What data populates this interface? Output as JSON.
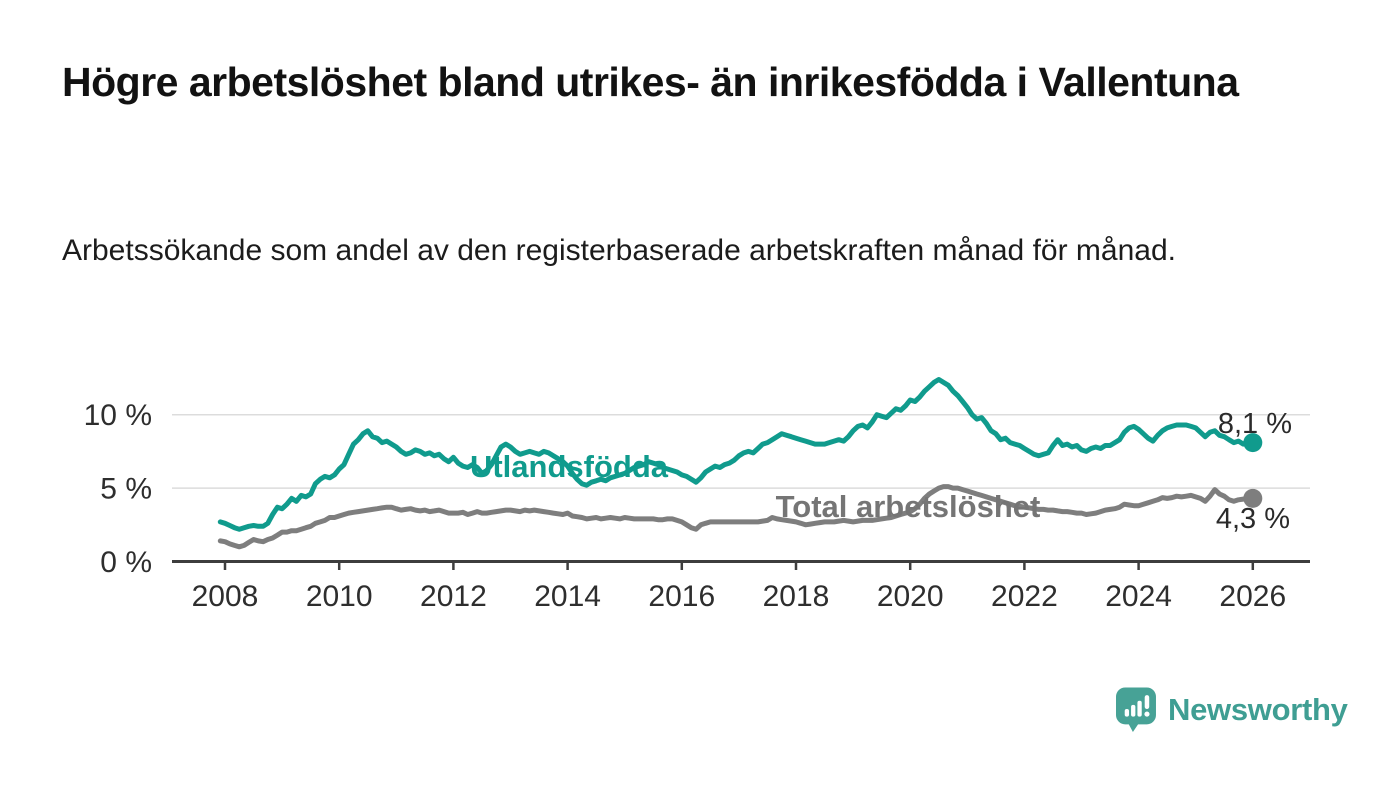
{
  "header": {
    "title": "Högre arbetslöshet bland utrikes- än inrikesfödda i Vallentuna",
    "subtitle": "Arbetssökande som andel av den registerbaserade arbetskraften månad för månad."
  },
  "chart_data": {
    "type": "line",
    "title": "Högre arbetslöshet bland utrikes- än inrikesfödda i Vallentuna",
    "subtitle": "Arbetssökande som andel av den registerbaserade arbetskraften månad för månad.",
    "unit": "%",
    "x_start": 2007.917,
    "x_step_months": 1,
    "x_end": 2026.0,
    "xlim": [
      2007.1,
      2027.0
    ],
    "ylim": [
      0,
      13.1
    ],
    "grid": "horizontal-only",
    "legend_position": "inline-labels",
    "yticks": [
      {
        "value": 0,
        "label": "0 %"
      },
      {
        "value": 5,
        "label": "5 %"
      },
      {
        "value": 10,
        "label": "10 %"
      }
    ],
    "gridlines": [
      5,
      10
    ],
    "xticks": [
      {
        "value": 2008,
        "label": "2008"
      },
      {
        "value": 2010,
        "label": "2010"
      },
      {
        "value": 2012,
        "label": "2012"
      },
      {
        "value": 2014,
        "label": "2014"
      },
      {
        "value": 2016,
        "label": "2016"
      },
      {
        "value": 2018,
        "label": "2018"
      },
      {
        "value": 2020,
        "label": "2020"
      },
      {
        "value": 2022,
        "label": "2022"
      },
      {
        "value": 2024,
        "label": "2024"
      },
      {
        "value": 2026,
        "label": "2026"
      }
    ],
    "series": [
      {
        "name": "Utlandsfödda",
        "color": "#109b8d",
        "end_label": "8,1 %",
        "end_value": 8.1,
        "values": [
          2.7,
          2.6,
          2.45,
          2.3,
          2.2,
          2.3,
          2.4,
          2.45,
          2.4,
          2.4,
          2.6,
          3.2,
          3.7,
          3.6,
          3.9,
          4.3,
          4.1,
          4.5,
          4.4,
          4.6,
          5.3,
          5.6,
          5.8,
          5.7,
          5.9,
          6.3,
          6.6,
          7.3,
          8.0,
          8.3,
          8.7,
          8.9,
          8.5,
          8.4,
          8.1,
          8.2,
          8.0,
          7.8,
          7.5,
          7.3,
          7.4,
          7.6,
          7.5,
          7.3,
          7.4,
          7.2,
          7.3,
          7.0,
          6.8,
          7.1,
          6.7,
          6.5,
          6.4,
          6.6,
          6.4,
          6.0,
          6.2,
          6.6,
          7.2,
          7.8,
          8.0,
          7.8,
          7.5,
          7.3,
          7.4,
          7.5,
          7.4,
          7.3,
          7.5,
          7.4,
          7.2,
          7.0,
          6.8,
          6.5,
          6.0,
          5.6,
          5.3,
          5.2,
          5.4,
          5.5,
          5.6,
          5.5,
          5.7,
          5.8,
          5.9,
          6.0,
          6.2,
          6.4,
          6.5,
          6.6,
          6.8,
          6.7,
          6.6,
          6.4,
          6.3,
          6.2,
          6.1,
          5.9,
          5.8,
          5.6,
          5.4,
          5.7,
          6.1,
          6.3,
          6.5,
          6.4,
          6.6,
          6.7,
          6.9,
          7.2,
          7.4,
          7.5,
          7.4,
          7.7,
          8.0,
          8.1,
          8.3,
          8.5,
          8.7,
          8.6,
          8.5,
          8.4,
          8.3,
          8.2,
          8.1,
          8.0,
          8.0,
          8.0,
          8.1,
          8.2,
          8.3,
          8.2,
          8.5,
          8.9,
          9.2,
          9.3,
          9.1,
          9.5,
          10.0,
          9.9,
          9.8,
          10.1,
          10.4,
          10.3,
          10.6,
          11.0,
          10.9,
          11.2,
          11.6,
          11.9,
          12.2,
          12.4,
          12.2,
          12.0,
          11.6,
          11.3,
          10.9,
          10.5,
          10.0,
          9.7,
          9.8,
          9.4,
          8.9,
          8.7,
          8.3,
          8.4,
          8.1,
          8.0,
          7.9,
          7.7,
          7.5,
          7.3,
          7.2,
          7.3,
          7.4,
          7.9,
          8.3,
          7.9,
          8.0,
          7.8,
          7.9,
          7.6,
          7.5,
          7.7,
          7.8,
          7.7,
          7.9,
          7.9,
          8.1,
          8.3,
          8.8,
          9.1,
          9.2,
          9.0,
          8.7,
          8.4,
          8.2,
          8.6,
          8.9,
          9.1,
          9.2,
          9.3,
          9.3,
          9.3,
          9.2,
          9.1,
          8.8,
          8.5,
          8.8,
          8.9,
          8.6,
          8.5,
          8.3,
          8.1,
          8.2,
          8.0,
          8.1,
          8.1
        ]
      },
      {
        "name": "Total arbetslöshet",
        "color": "#7e7e7e",
        "end_label": "4,3 %",
        "end_value": 4.3,
        "values": [
          1.4,
          1.35,
          1.2,
          1.1,
          1.0,
          1.1,
          1.3,
          1.5,
          1.4,
          1.35,
          1.5,
          1.6,
          1.8,
          2.0,
          2.0,
          2.1,
          2.1,
          2.2,
          2.3,
          2.4,
          2.6,
          2.7,
          2.8,
          3.0,
          3.0,
          3.1,
          3.2,
          3.3,
          3.35,
          3.4,
          3.45,
          3.5,
          3.55,
          3.6,
          3.65,
          3.7,
          3.7,
          3.6,
          3.5,
          3.55,
          3.6,
          3.5,
          3.45,
          3.5,
          3.4,
          3.45,
          3.5,
          3.4,
          3.3,
          3.3,
          3.3,
          3.35,
          3.2,
          3.3,
          3.4,
          3.3,
          3.3,
          3.35,
          3.4,
          3.45,
          3.5,
          3.5,
          3.45,
          3.4,
          3.5,
          3.45,
          3.5,
          3.45,
          3.4,
          3.35,
          3.3,
          3.25,
          3.2,
          3.3,
          3.1,
          3.05,
          3.0,
          2.9,
          2.95,
          3.0,
          2.9,
          2.95,
          3.0,
          2.95,
          2.9,
          3.0,
          2.95,
          2.9,
          2.9,
          2.9,
          2.9,
          2.9,
          2.85,
          2.85,
          2.9,
          2.9,
          2.8,
          2.7,
          2.5,
          2.3,
          2.2,
          2.5,
          2.6,
          2.7,
          2.7,
          2.7,
          2.7,
          2.7,
          2.7,
          2.7,
          2.7,
          2.7,
          2.7,
          2.7,
          2.75,
          2.8,
          3.0,
          2.9,
          2.85,
          2.8,
          2.75,
          2.7,
          2.6,
          2.5,
          2.55,
          2.6,
          2.65,
          2.7,
          2.7,
          2.7,
          2.75,
          2.8,
          2.75,
          2.7,
          2.75,
          2.8,
          2.8,
          2.8,
          2.85,
          2.9,
          2.95,
          3.0,
          3.1,
          3.2,
          3.3,
          3.4,
          3.6,
          3.9,
          4.3,
          4.6,
          4.8,
          5.0,
          5.1,
          5.1,
          5.0,
          5.0,
          4.9,
          4.8,
          4.7,
          4.6,
          4.5,
          4.4,
          4.3,
          4.2,
          4.1,
          4.0,
          3.9,
          3.8,
          3.75,
          3.7,
          3.65,
          3.6,
          3.55,
          3.55,
          3.5,
          3.5,
          3.45,
          3.4,
          3.4,
          3.35,
          3.3,
          3.3,
          3.2,
          3.25,
          3.3,
          3.4,
          3.5,
          3.55,
          3.6,
          3.7,
          3.9,
          3.85,
          3.8,
          3.8,
          3.9,
          4.0,
          4.1,
          4.2,
          4.35,
          4.3,
          4.35,
          4.45,
          4.4,
          4.45,
          4.5,
          4.4,
          4.3,
          4.1,
          4.45,
          4.9,
          4.6,
          4.45,
          4.2,
          4.1,
          4.2,
          4.25,
          4.3,
          4.3
        ]
      }
    ]
  },
  "branding": {
    "logo_text": "Newsworthy",
    "logo_color": "#47a296",
    "logo_icon": "speech-bubble-bar-chart-icon"
  }
}
